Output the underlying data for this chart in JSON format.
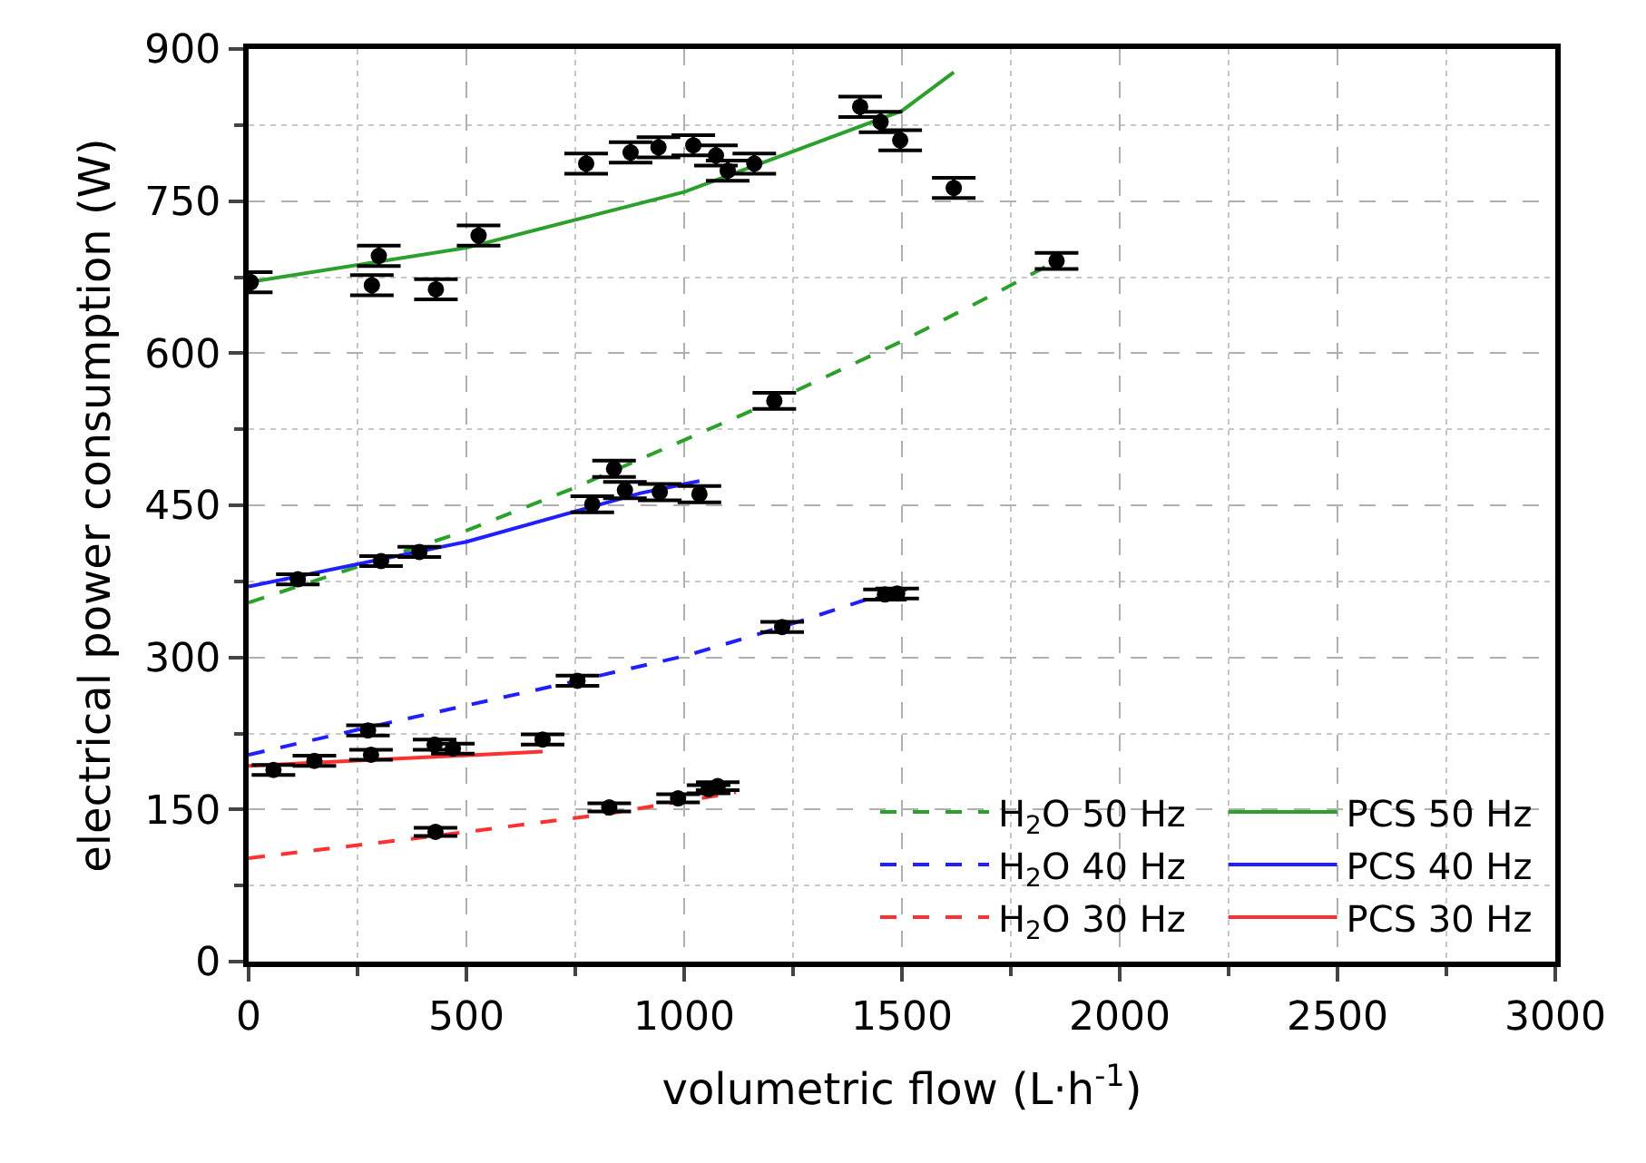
{
  "chart_data": {
    "type": "scatter",
    "xlabel": "volumetric flow (L·h$^{-1}$)",
    "ylabel": "electrical power consumption (W)",
    "xlim": [
      0,
      3000
    ],
    "xticks": [
      0,
      500,
      1000,
      1500,
      2000,
      2500,
      3000
    ],
    "ylim": [
      0,
      900
    ],
    "yticks": [
      0,
      150,
      300,
      450,
      600,
      750,
      900
    ],
    "grid": true,
    "legend": "bottom right",
    "marker": "circle",
    "series": [
      {
        "type": "line",
        "name": "H$_{2}$O 50 Hz",
        "color": "#2ca02c",
        "line_style": "dashed",
        "marker": "none",
        "x": [
          0,
          500,
          741,
          1207,
          1501,
          1719,
          1855
        ],
        "values": [
          354,
          425,
          466,
          553,
          612,
          660,
          691
        ]
      },
      {
        "type": "line",
        "name": "PCS 50 Hz",
        "color": "#2ca02c",
        "line_style": "solid",
        "marker": "none",
        "x": [
          0,
          500,
          1000,
          1500,
          1619
        ],
        "values": [
          670,
          704,
          759,
          839,
          877
        ]
      },
      {
        "type": "line",
        "name": "H$_{2}$O 40 Hz",
        "color": "#1f1fff",
        "line_style": "dashed",
        "marker": "none",
        "x": [
          0,
          274,
          755,
          1007,
          1225,
          1496
        ],
        "values": [
          204,
          231,
          277,
          302,
          330,
          368
        ]
      },
      {
        "type": "line",
        "name": "PCS 40 Hz",
        "color": "#1f1fff",
        "line_style": "solid",
        "marker": "none",
        "x": [
          0,
          500,
          900,
          1035
        ],
        "values": [
          370,
          414,
          462,
          474
        ]
      },
      {
        "type": "line",
        "name": "H$_{2}$O 30 Hz",
        "color": "#ff3030",
        "line_style": "dashed",
        "marker": "none",
        "x": [
          0,
          429,
          828,
          1119
        ],
        "values": [
          102,
          124,
          146,
          167
        ]
      },
      {
        "type": "line",
        "name": "PCS 30 Hz",
        "color": "#ff3030",
        "line_style": "solid",
        "marker": "none",
        "x": [
          0,
          675
        ],
        "values": [
          193,
          207
        ]
      },
      {
        "color": "#000000",
        "x": [
          5,
          299,
          283,
          430,
          528,
          775,
          877,
          941,
          1021,
          1073,
          1100,
          1161,
          1404,
          1451,
          1496,
          1619,
          1207,
          839,
          1855,
          864,
          789,
          944,
          1035,
          113,
          304,
          392,
          1461,
          1489,
          1225,
          755,
          274,
          281,
          151,
          57,
          427,
          469,
          675,
          429,
          828,
          986,
          1056,
          1077
        ],
        "values": [
          670,
          696,
          667,
          663,
          716,
          787,
          798,
          803,
          805,
          795,
          780,
          787,
          843,
          828,
          810,
          763,
          553,
          486,
          691,
          465,
          451,
          463,
          461,
          377,
          395,
          404,
          362,
          363,
          330,
          277,
          228,
          204,
          198,
          189,
          214,
          210,
          219,
          128,
          152,
          161,
          170,
          173
        ],
        "errors": [
          10,
          10,
          10,
          10,
          10,
          10,
          10,
          10,
          10,
          10,
          10,
          10,
          10,
          10,
          10,
          10,
          8,
          8,
          8,
          8,
          8,
          8,
          8,
          5,
          5,
          5,
          5,
          5,
          5,
          5,
          5,
          5,
          5,
          5,
          5,
          5,
          5,
          4,
          4,
          4,
          4,
          4
        ]
      }
    ]
  }
}
